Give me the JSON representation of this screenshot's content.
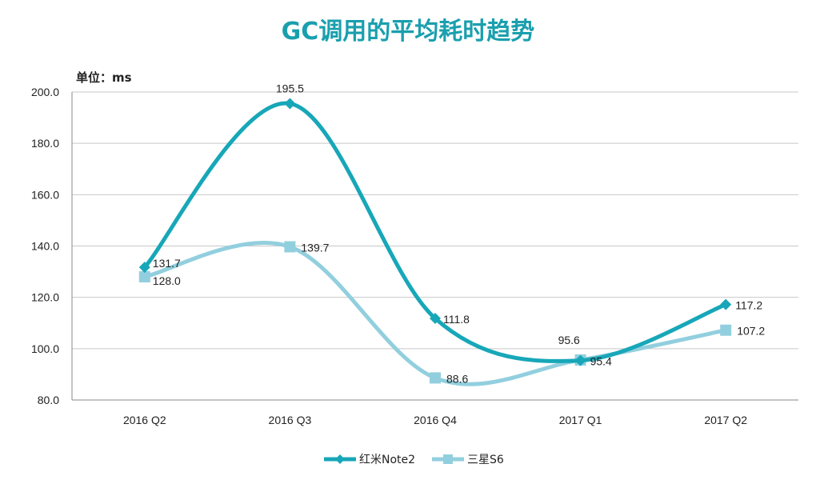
{
  "title": "GC调用的平均耗时趋势",
  "unit_label": "单位：ms",
  "colors": {
    "series1": "#17a7b8",
    "series2": "#92cfde",
    "title": "#1a9fae",
    "grid": "#c8c8c8"
  },
  "chart_data": {
    "type": "line",
    "title": "GC调用的平均耗时趋势",
    "ylabel": "单位：ms",
    "categories": [
      "2016 Q2",
      "2016 Q3",
      "2016 Q4",
      "2017 Q1",
      "2017 Q2"
    ],
    "ylim": [
      80,
      200
    ],
    "yticks": [
      "80.0",
      "100.0",
      "120.0",
      "140.0",
      "160.0",
      "180.0",
      "200.0"
    ],
    "grid": true,
    "legend_position": "bottom",
    "series": [
      {
        "name": "红米Note2",
        "values": [
          131.7,
          195.5,
          111.8,
          95.4,
          117.2
        ],
        "labels": [
          "131.7",
          "195.5",
          "111.8",
          "95.4",
          "117.2"
        ],
        "marker": "diamond"
      },
      {
        "name": "三星S6",
        "values": [
          128.0,
          139.7,
          88.6,
          95.6,
          107.2
        ],
        "labels": [
          "128.0",
          "139.7",
          "88.6",
          "95.6",
          "107.2"
        ],
        "marker": "square"
      }
    ]
  }
}
